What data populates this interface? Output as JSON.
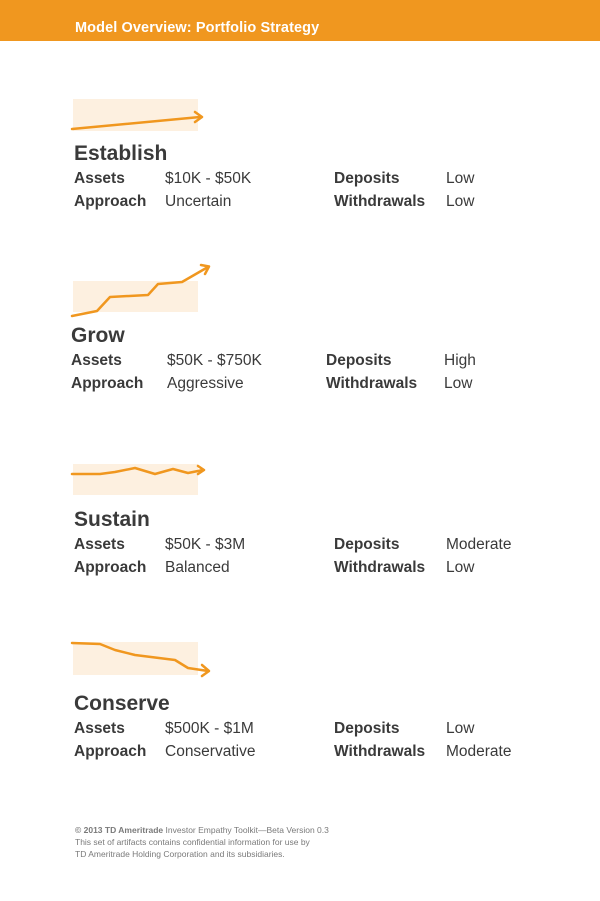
{
  "header": {
    "title": "Model Overview: Portfolio Strategy"
  },
  "colors": {
    "accent": "#f0971f",
    "band": "#fdf0e0",
    "text": "#3a3a3a"
  },
  "labels": {
    "assets": "Assets",
    "approach": "Approach",
    "deposits": "Deposits",
    "withdrawals": "Withdrawals"
  },
  "sections": [
    {
      "name": "Establish",
      "assets": "$10K - $50K",
      "approach": "Uncertain",
      "deposits": "Low",
      "withdrawals": "Low",
      "trend": "slow-rise"
    },
    {
      "name": "Grow",
      "assets": "$50K - $750K",
      "approach": "Aggressive",
      "deposits": "High",
      "withdrawals": "Low",
      "trend": "steep-rise"
    },
    {
      "name": "Sustain",
      "assets": "$50K - $3M",
      "approach": "Balanced",
      "deposits": "Moderate",
      "withdrawals": "Low",
      "trend": "flat"
    },
    {
      "name": "Conserve",
      "assets": "$500K - $1M",
      "approach": "Conservative",
      "deposits": "Low",
      "withdrawals": "Moderate",
      "trend": "decline"
    }
  ],
  "footer": {
    "copyright": "© 2013 TD Ameritrade",
    "toolkit": "Investor Empathy Toolkit—Beta Version 0.3",
    "line2": "This set of artifacts contains confidential information for use by",
    "line3": "TD Ameritrade Holding Corporation and its subsidiaries."
  }
}
